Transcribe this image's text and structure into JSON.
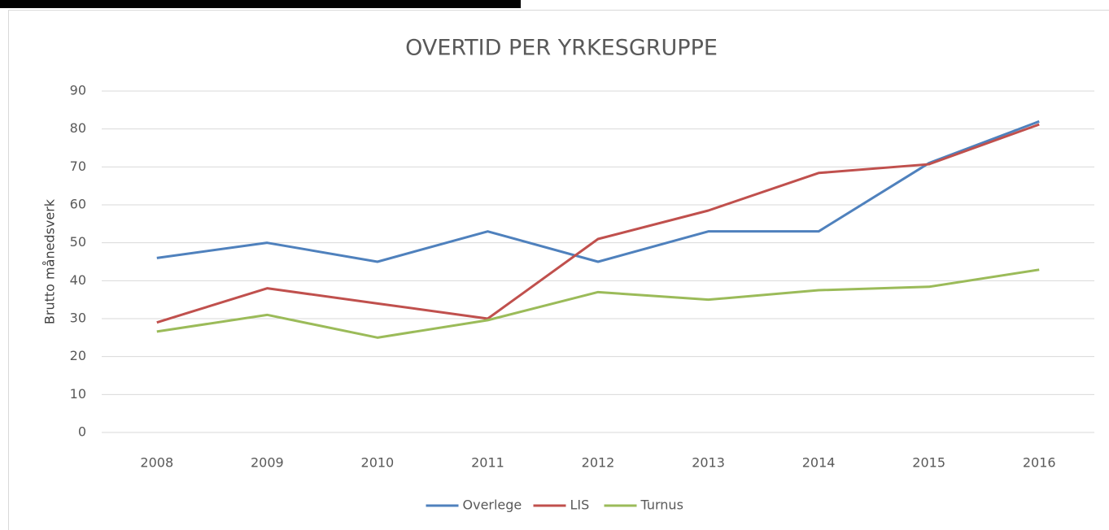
{
  "chart_data": {
    "type": "line",
    "title": "OVERTID PER YRKESGRUPPE",
    "y_label": "Brutto månedsverk",
    "categories": [
      "2008",
      "2009",
      "2010",
      "2011",
      "2012",
      "2013",
      "2014",
      "2015",
      "2016"
    ],
    "series": [
      {
        "name": "Overlege",
        "color": "#4f81bd",
        "values": [
          46,
          50,
          45,
          53,
          45,
          53,
          53,
          71,
          82
        ]
      },
      {
        "name": "LIS",
        "color": "#c0504d",
        "values": [
          29,
          38,
          34,
          30,
          51,
          58.5,
          68.4,
          70.7,
          81.2
        ]
      },
      {
        "name": "Turnus",
        "color": "#9bbb59",
        "values": [
          26.6,
          31,
          25,
          29.6,
          37,
          35,
          37.5,
          38.4,
          42.9
        ]
      }
    ],
    "ylim": [
      0,
      90
    ],
    "yticks": [
      0,
      10,
      20,
      30,
      40,
      50,
      60,
      70,
      80,
      90
    ],
    "grid": true,
    "legend": "bottom"
  }
}
